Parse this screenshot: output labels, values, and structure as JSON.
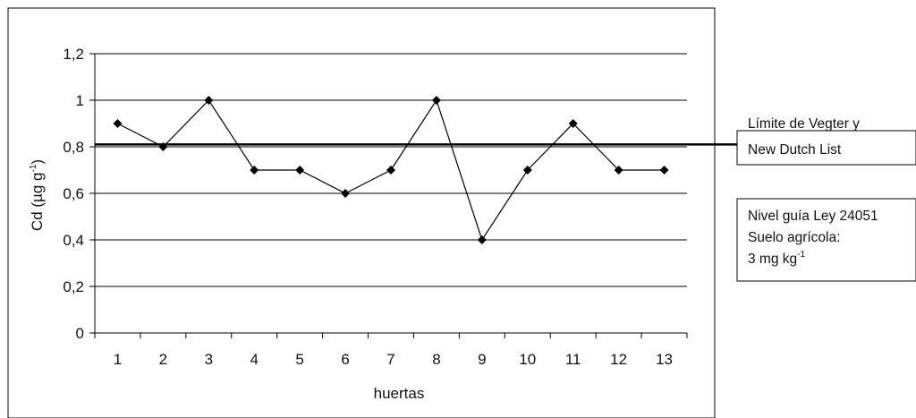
{
  "chart_data": {
    "type": "line",
    "title": "",
    "xlabel": "huertas",
    "ylabel": "Cd (µg g",
    "ylabel_sup": "-1",
    "ylabel_close": ")",
    "ylim": [
      0,
      1.2
    ],
    "y_ticks": [
      "0",
      "0,2",
      "0,4",
      "0,6",
      "0,8",
      "1",
      "1,2"
    ],
    "y_tick_values": [
      0,
      0.2,
      0.4,
      0.6,
      0.8,
      1.0,
      1.2
    ],
    "categories": [
      "1",
      "2",
      "3",
      "4",
      "5",
      "6",
      "7",
      "8",
      "9",
      "10",
      "11",
      "12",
      "13"
    ],
    "series": [
      {
        "values": [
          0.9,
          0.8,
          1.0,
          0.7,
          0.7,
          0.6,
          0.7,
          1.0,
          0.4,
          0.7,
          0.9,
          0.7,
          0.7
        ]
      }
    ],
    "reference_line": {
      "value": 0.81
    },
    "grid": true,
    "legend": "none",
    "colors": {
      "line": "#000000",
      "grid": "#000000",
      "reference": "#000000"
    }
  },
  "annotations": {
    "vegter": {
      "line1": "Límite de Vegter y",
      "line2": "New Dutch List"
    },
    "ley": {
      "line1": "Nivel guía Ley 24051",
      "line2": "Suelo agrícola:",
      "line3": "3 mg kg",
      "line3_sup": "-1"
    }
  }
}
